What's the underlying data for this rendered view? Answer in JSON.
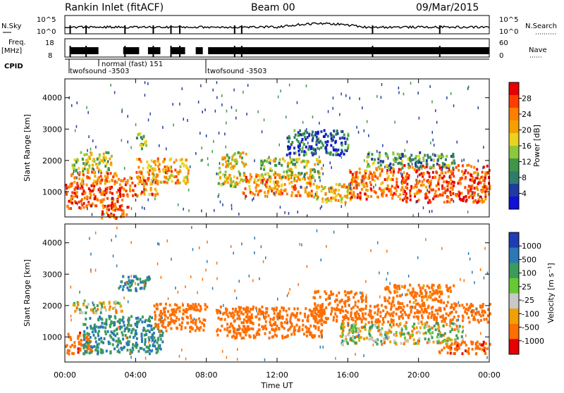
{
  "header": {
    "station": "Rankin Inlet (fitACF)",
    "beam": "Beam 00",
    "date": "09/Mar/2015"
  },
  "panels": {
    "nsky": {
      "left_label": "N.Sky",
      "right_label": "N.Search",
      "left_ticks": [
        "10^5",
        "10^0"
      ],
      "right_ticks": [
        "10^5",
        "10^0"
      ]
    },
    "freq": {
      "left_label": "Freq.",
      "left_unit": "[MHz]",
      "right_label": "Nave",
      "left_ticks": [
        "18",
        "8"
      ],
      "right_ticks": [
        "60",
        "0"
      ]
    },
    "cpid": {
      "label": "CPID",
      "segments": [
        {
          "label": "twofsound -3503",
          "start_hour": 0.0
        },
        {
          "label": "normal (fast) 151",
          "start_hour": 1.9
        },
        {
          "label": "twofsound -3503",
          "start_hour": 8.0
        }
      ]
    }
  },
  "colorbars": {
    "power": {
      "title": "Power [dB]",
      "labels": [
        "28",
        "24",
        "20",
        "16",
        "12",
        "8",
        "4"
      ],
      "colors": [
        "#e60000",
        "#ff3d00",
        "#ff7f00",
        "#f4a000",
        "#ebd21e",
        "#8cc83c",
        "#3f9648",
        "#2e7d6b",
        "#1e3ca0",
        "#1010d8"
      ]
    },
    "velocity": {
      "title": "Velocity [m s⁻¹]",
      "labels": [
        "1000",
        "500",
        "100",
        "25",
        "-25",
        "-100",
        "-500",
        "-1000"
      ],
      "colors": [
        "#1e3cb4",
        "#2a78b4",
        "#3c9a5a",
        "#66c832",
        "#c8c8c8",
        "#f0a000",
        "#ff6e00",
        "#e60000"
      ]
    }
  },
  "chart_data": [
    {
      "type": "heatmap",
      "name": "power",
      "ylabel": "Slant Range [km]",
      "yticks": [
        1000,
        2000,
        3000,
        4000
      ],
      "ylim": [
        200,
        4600
      ],
      "xlim_hours": [
        0,
        24
      ],
      "colorbar_range_db": [
        0,
        32
      ],
      "regions": [
        {
          "t0": 0.0,
          "t1": 3.2,
          "r0": 500,
          "r1": 1300,
          "level": 28
        },
        {
          "t0": 0.2,
          "t1": 3.0,
          "r0": 1300,
          "r1": 1700,
          "level": 24
        },
        {
          "t0": 0.3,
          "t1": 2.6,
          "r0": 1700,
          "r1": 2300,
          "level": 16
        },
        {
          "t0": 3.0,
          "t1": 5.2,
          "r0": 900,
          "r1": 1500,
          "level": 26
        },
        {
          "t0": 4.0,
          "t1": 7.0,
          "r0": 1300,
          "r1": 2100,
          "level": 22
        },
        {
          "t0": 2.0,
          "t1": 3.6,
          "r0": 200,
          "r1": 600,
          "level": 28
        },
        {
          "t0": 4.0,
          "t1": 4.6,
          "r0": 2400,
          "r1": 2900,
          "level": 14
        },
        {
          "t0": 8.6,
          "t1": 10.2,
          "r0": 1200,
          "r1": 2300,
          "level": 18
        },
        {
          "t0": 10.0,
          "t1": 14.0,
          "r0": 900,
          "r1": 1600,
          "level": 24
        },
        {
          "t0": 11.0,
          "t1": 14.5,
          "r0": 1500,
          "r1": 2100,
          "level": 14
        },
        {
          "t0": 14.0,
          "t1": 16.2,
          "r0": 700,
          "r1": 1300,
          "level": 20
        },
        {
          "t0": 16.0,
          "t1": 19.0,
          "r0": 800,
          "r1": 1800,
          "level": 26
        },
        {
          "t0": 19.0,
          "t1": 24.0,
          "r0": 700,
          "r1": 1900,
          "level": 28
        },
        {
          "t0": 17.0,
          "t1": 22.0,
          "r0": 1800,
          "r1": 2300,
          "level": 10
        },
        {
          "t0": 12.5,
          "t1": 16.0,
          "r0": 2200,
          "r1": 3000,
          "level": 6
        }
      ]
    },
    {
      "type": "heatmap",
      "name": "velocity",
      "ylabel": "Slant Range [km]",
      "xlabel": "Time UT",
      "yticks": [
        1000,
        2000,
        3000,
        4000
      ],
      "ylim": [
        200,
        4600
      ],
      "xlim_hours": [
        0,
        24
      ],
      "xticks": [
        "00:00",
        "04:00",
        "08:00",
        "12:00",
        "16:00",
        "20:00",
        "00:00"
      ],
      "regions": [
        {
          "t0": 0.0,
          "t1": 1.5,
          "r0": 500,
          "r1": 1200,
          "level": -500
        },
        {
          "t0": 1.0,
          "t1": 5.5,
          "r0": 500,
          "r1": 1700,
          "level": 300
        },
        {
          "t0": 0.4,
          "t1": 3.2,
          "r0": 1800,
          "r1": 2200,
          "level": 0
        },
        {
          "t0": 3.0,
          "t1": 4.8,
          "r0": 2500,
          "r1": 3000,
          "level": 300
        },
        {
          "t0": 5.0,
          "t1": 8.0,
          "r0": 1200,
          "r1": 2100,
          "level": -300
        },
        {
          "t0": 8.5,
          "t1": 10.5,
          "r0": 1000,
          "r1": 2000,
          "level": -300
        },
        {
          "t0": 10.0,
          "t1": 14.5,
          "r0": 1000,
          "r1": 2000,
          "level": -400
        },
        {
          "t0": 14.0,
          "t1": 17.0,
          "r0": 1500,
          "r1": 2500,
          "level": -300
        },
        {
          "t0": 15.5,
          "t1": 22.5,
          "r0": 800,
          "r1": 1500,
          "level": 0
        },
        {
          "t0": 17.0,
          "t1": 24.0,
          "r0": 1500,
          "r1": 2100,
          "level": -300
        },
        {
          "t0": 21.0,
          "t1": 24.0,
          "r0": 500,
          "r1": 900,
          "level": -500
        },
        {
          "t0": 18.0,
          "t1": 22.0,
          "r0": 2100,
          "r1": 2700,
          "level": -200
        }
      ]
    }
  ]
}
